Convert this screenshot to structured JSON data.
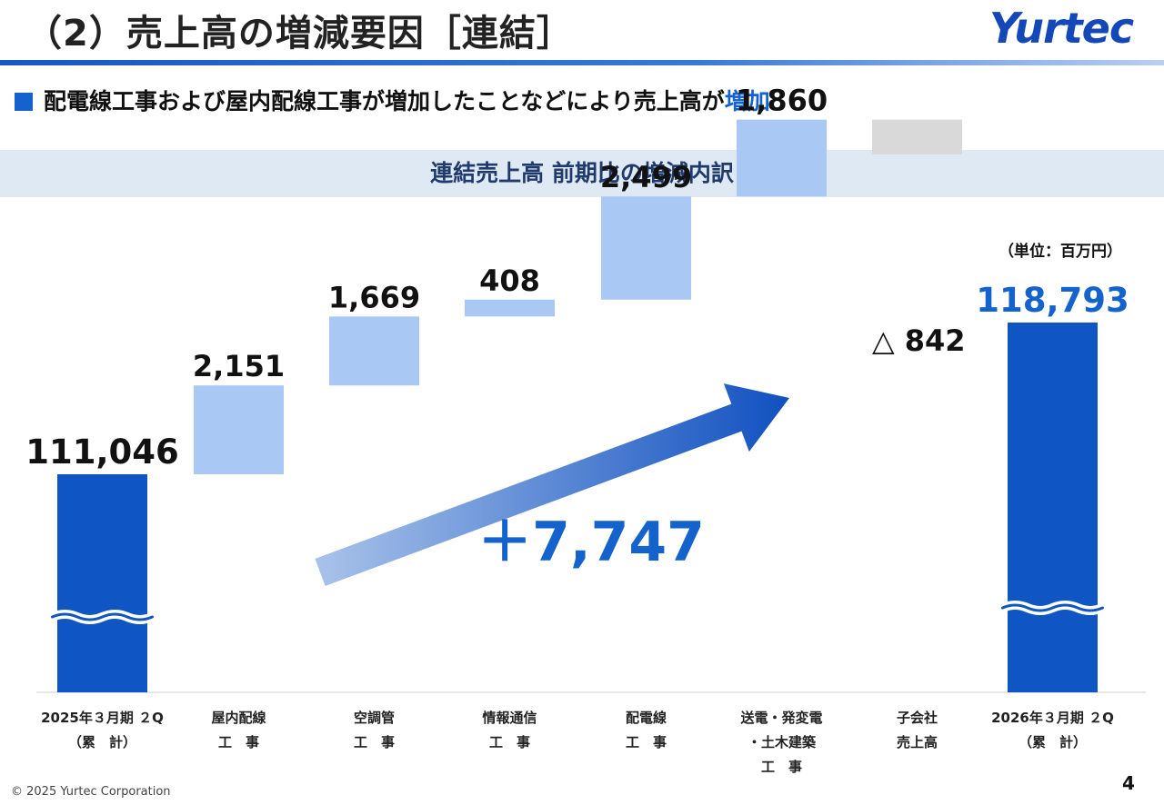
{
  "header": {
    "title": "（2）売上高の増減要因［連結］",
    "logo_text": "Yurtec",
    "subtitle_prefix": "配電線工事および屋内配線工事が増加したことなどにより売上高が",
    "subtitle_highlight": "増加",
    "section_title": "連結売上高 前期比の増減内訳",
    "unit": "（単位：百万円）"
  },
  "footer": {
    "copyright": "© 2025 Yurtec Corporation",
    "page_number": "4"
  },
  "colors": {
    "total_bar": "#1055c4",
    "increase_bar": "#a9c9f4",
    "decrease_bar": "#d9d9d9",
    "accent_text": "#1463cc",
    "arrow_start": "#a9c3ea",
    "arrow_end": "#1050c0"
  },
  "chart_data": {
    "type": "bar",
    "subtype": "waterfall",
    "title": "連結売上高 前期比の増減内訳",
    "unit": "百万円",
    "categories": [
      [
        "2025年３月期 ２Q",
        "（累　計）"
      ],
      [
        "屋内配線",
        "工　事"
      ],
      [
        "空調管",
        "工　事"
      ],
      [
        "情報通信",
        "工　事"
      ],
      [
        "配電線",
        "工　事"
      ],
      [
        "送電・発変電",
        "・土木建築",
        "工　事"
      ],
      [
        "子会社",
        "売上高"
      ],
      [
        "2026年３月期 ２Q",
        "（累　計）"
      ]
    ],
    "values": [
      111046,
      2151,
      1669,
      408,
      2499,
      1860,
      -842,
      118793
    ],
    "value_labels": [
      "111,046",
      "2,151",
      "1,669",
      "408",
      "2,499",
      "1,860",
      "△ 842",
      "118,793"
    ],
    "kinds": [
      "total",
      "increase",
      "increase",
      "increase",
      "increase",
      "increase",
      "decrease",
      "total"
    ],
    "total_change_label": "＋7,747",
    "axis_break": true,
    "legend": "none",
    "grid": false
  }
}
